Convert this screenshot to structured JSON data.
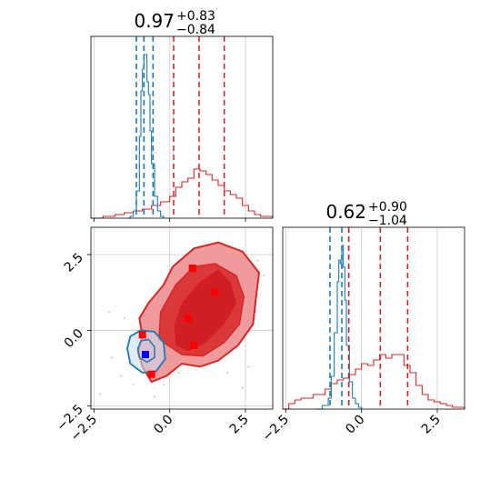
{
  "chart_data": {
    "type": "corner",
    "colors": {
      "blue": "#1f77b4",
      "red": "#d62728",
      "red_light": "#ef9a9b",
      "marker_blue": "#0000ff",
      "marker_red": "#ff0000"
    },
    "titles": [
      {
        "value": "0.97",
        "plus": "+0.83",
        "minus": "−0.84"
      },
      {
        "value": "0.62",
        "plus": "+0.90",
        "minus": "−1.04"
      }
    ],
    "range": [
      -2.6,
      3.4
    ],
    "ticks": [
      {
        "value": -2.5,
        "label": "−2.5"
      },
      {
        "value": 0.0,
        "label": "0.0"
      },
      {
        "value": 2.5,
        "label": "2.5"
      }
    ],
    "hist_x": {
      "blue_quantiles": [
        -1.1,
        -0.85,
        -0.55
      ],
      "red_quantiles": [
        0.13,
        0.97,
        1.8
      ],
      "blue": [
        [
          -1.4,
          0
        ],
        [
          -1.3,
          0.01
        ],
        [
          -1.2,
          0.04
        ],
        [
          -1.1,
          0.15
        ],
        [
          -1.0,
          0.45
        ],
        [
          -0.95,
          0.7
        ],
        [
          -0.9,
          0.82
        ],
        [
          -0.85,
          0.9
        ],
        [
          -0.8,
          0.9
        ],
        [
          -0.75,
          0.75
        ],
        [
          -0.7,
          0.68
        ],
        [
          -0.65,
          0.48
        ],
        [
          -0.6,
          0.3
        ],
        [
          -0.5,
          0.12
        ],
        [
          -0.4,
          0.04
        ],
        [
          -0.3,
          0.01
        ],
        [
          -0.2,
          0
        ]
      ],
      "red": [
        [
          -2.6,
          0
        ],
        [
          -2.2,
          0.01
        ],
        [
          -1.8,
          0.02
        ],
        [
          -1.5,
          0.03
        ],
        [
          -1.2,
          0.04
        ],
        [
          -0.9,
          0.05
        ],
        [
          -0.6,
          0.07
        ],
        [
          -0.3,
          0.09
        ],
        [
          0.0,
          0.12
        ],
        [
          0.2,
          0.17
        ],
        [
          0.4,
          0.2
        ],
        [
          0.6,
          0.22
        ],
        [
          0.8,
          0.27
        ],
        [
          1.0,
          0.26
        ],
        [
          1.2,
          0.24
        ],
        [
          1.4,
          0.21
        ],
        [
          1.6,
          0.18
        ],
        [
          1.8,
          0.15
        ],
        [
          2.0,
          0.13
        ],
        [
          2.2,
          0.11
        ],
        [
          2.4,
          0.07
        ],
        [
          2.6,
          0.04
        ],
        [
          2.8,
          0.02
        ],
        [
          3.0,
          0.01
        ],
        [
          3.2,
          0.01
        ],
        [
          3.4,
          0
        ]
      ]
    },
    "hist_y": {
      "blue_quantiles": [
        -1.04,
        -0.65,
        -0.42
      ],
      "red_quantiles": [
        -0.42,
        0.62,
        1.52
      ],
      "blue": [
        [
          -1.5,
          0
        ],
        [
          -1.3,
          0.02
        ],
        [
          -1.1,
          0.06
        ],
        [
          -1.0,
          0.18
        ],
        [
          -0.9,
          0.42
        ],
        [
          -0.8,
          0.7
        ],
        [
          -0.75,
          0.82
        ],
        [
          -0.7,
          0.8
        ],
        [
          -0.65,
          0.9
        ],
        [
          -0.6,
          0.78
        ],
        [
          -0.55,
          0.6
        ],
        [
          -0.5,
          0.35
        ],
        [
          -0.4,
          0.15
        ],
        [
          -0.3,
          0.06
        ],
        [
          -0.2,
          0.03
        ],
        [
          -0.1,
          0.01
        ],
        [
          0.0,
          0
        ]
      ],
      "red": [
        [
          -2.6,
          0
        ],
        [
          -2.4,
          0.03
        ],
        [
          -2.2,
          0.05
        ],
        [
          -2.0,
          0.06
        ],
        [
          -1.8,
          0.06
        ],
        [
          -1.6,
          0.08
        ],
        [
          -1.4,
          0.08
        ],
        [
          -1.2,
          0.11
        ],
        [
          -1.0,
          0.14
        ],
        [
          -0.8,
          0.16
        ],
        [
          -0.6,
          0.17
        ],
        [
          -0.4,
          0.19
        ],
        [
          -0.2,
          0.22
        ],
        [
          0.0,
          0.25
        ],
        [
          0.2,
          0.24
        ],
        [
          0.4,
          0.27
        ],
        [
          0.6,
          0.3
        ],
        [
          0.8,
          0.28
        ],
        [
          1.0,
          0.3
        ],
        [
          1.2,
          0.3
        ],
        [
          1.4,
          0.24
        ],
        [
          1.6,
          0.2
        ],
        [
          1.8,
          0.13
        ],
        [
          2.0,
          0.08
        ],
        [
          2.2,
          0.05
        ],
        [
          2.4,
          0.04
        ],
        [
          2.6,
          0.03
        ],
        [
          2.8,
          0.02
        ],
        [
          3.0,
          0.01
        ],
        [
          3.2,
          0.01
        ],
        [
          3.4,
          0
        ]
      ]
    },
    "red_contours": {
      "outer": [
        [
          -0.9,
          -1.2
        ],
        [
          -1.05,
          -0.7
        ],
        [
          -0.9,
          -0.2
        ],
        [
          -1.0,
          0.4
        ],
        [
          -0.7,
          0.9
        ],
        [
          -0.2,
          1.5
        ],
        [
          0.1,
          2.1
        ],
        [
          0.8,
          2.7
        ],
        [
          1.6,
          2.9
        ],
        [
          2.4,
          2.6
        ],
        [
          2.95,
          1.9
        ],
        [
          2.85,
          1.1
        ],
        [
          2.75,
          0.2
        ],
        [
          2.25,
          -0.5
        ],
        [
          1.6,
          -1.0
        ],
        [
          1.0,
          -1.2
        ],
        [
          0.4,
          -1.1
        ],
        [
          -0.1,
          -1.5
        ],
        [
          -0.6,
          -1.7
        ],
        [
          -0.9,
          -1.2
        ]
      ],
      "inner": [
        [
          -0.35,
          -0.3
        ],
        [
          -0.3,
          0.6
        ],
        [
          0.2,
          1.5
        ],
        [
          0.8,
          2.1
        ],
        [
          1.5,
          2.2
        ],
        [
          2.2,
          1.8
        ],
        [
          2.45,
          1.1
        ],
        [
          2.3,
          0.2
        ],
        [
          1.8,
          -0.4
        ],
        [
          1.1,
          -0.85
        ],
        [
          0.4,
          -0.8
        ],
        [
          -0.35,
          -0.3
        ]
      ],
      "mid": [
        [
          0.2,
          -0.5
        ],
        [
          0.15,
          0.2
        ],
        [
          0.4,
          0.9
        ],
        [
          1.0,
          1.6
        ],
        [
          1.6,
          2.0
        ],
        [
          2.0,
          1.6
        ],
        [
          2.2,
          0.9
        ],
        [
          1.8,
          0.2
        ],
        [
          1.2,
          -0.4
        ],
        [
          0.6,
          -0.7
        ],
        [
          0.2,
          -0.5
        ]
      ]
    },
    "blue_contours": {
      "outer": [
        [
          -1.4,
          -0.6
        ],
        [
          -1.3,
          -0.2
        ],
        [
          -0.95,
          0.0
        ],
        [
          -0.5,
          -0.05
        ],
        [
          -0.2,
          -0.4
        ],
        [
          -0.15,
          -0.95
        ],
        [
          -0.45,
          -1.35
        ],
        [
          -0.9,
          -1.4
        ],
        [
          -1.3,
          -1.1
        ],
        [
          -1.4,
          -0.6
        ]
      ],
      "inner": [
        [
          -1.05,
          -0.6
        ],
        [
          -0.95,
          -0.35
        ],
        [
          -0.7,
          -0.3
        ],
        [
          -0.5,
          -0.55
        ],
        [
          -0.5,
          -0.9
        ],
        [
          -0.75,
          -1.05
        ],
        [
          -1.0,
          -0.9
        ],
        [
          -1.05,
          -0.6
        ]
      ]
    },
    "scatter_points": [
      [
        -1.6,
        -1.5
      ],
      [
        -1.2,
        -1.8
      ],
      [
        -1.9,
        -0.9
      ],
      [
        -0.2,
        -1.8
      ],
      [
        0.0,
        -0.6
      ],
      [
        0.3,
        -1.4
      ],
      [
        -1.5,
        0.4
      ],
      [
        2.6,
        -1.2
      ],
      [
        2.4,
        -1.9
      ],
      [
        -2.0,
        0.6
      ],
      [
        2.9,
        2.3
      ],
      [
        3.1,
        1.8
      ],
      [
        -2.3,
        -2.1
      ],
      [
        -0.5,
        -2.2
      ],
      [
        1.9,
        -1.4
      ]
    ],
    "markers_red": [
      [
        0.75,
        2.05
      ],
      [
        1.5,
        1.25
      ],
      [
        0.6,
        0.4
      ],
      [
        0.8,
        -0.5
      ],
      [
        -0.9,
        -0.15
      ],
      [
        -0.6,
        -1.45
      ]
    ],
    "marker_blue": [
      -0.8,
      -0.8
    ]
  }
}
